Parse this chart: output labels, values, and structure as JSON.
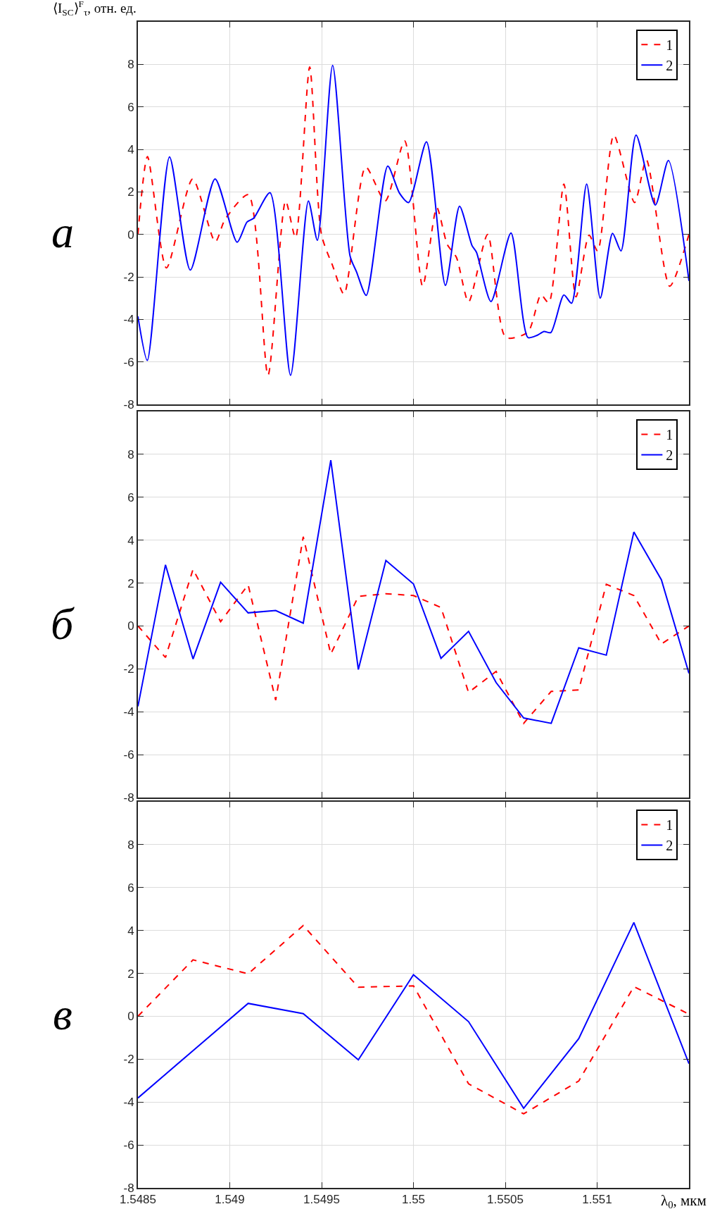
{
  "chart_data": [
    {
      "type": "line",
      "ylabel": "⟨I$_{SC}$⟩$^{F}$$_{τ}$, отн. ед.",
      "annotations": [
        "а"
      ],
      "xlim": [
        1.5485,
        1.5515
      ],
      "xticks": [
        1.5485,
        1.549,
        1.5495,
        1.55,
        1.5505,
        1.551
      ],
      "ylim": [
        -8,
        10
      ],
      "yticks": [
        -8,
        -6,
        -4,
        -2,
        0,
        2,
        4,
        6,
        8
      ],
      "grid": true,
      "legend": "top right",
      "tick_labels": "y",
      "series": [
        {
          "name": "1",
          "color": "#ff0000",
          "line_style": "dashed",
          "x": [
            1.5485,
            1.548552,
            1.548655,
            1.548798,
            1.548921,
            1.548974,
            1.549101,
            1.549208,
            1.549304,
            1.549358,
            1.549435,
            1.549499,
            1.549562,
            1.549622,
            1.54974,
            1.549846,
            1.549952,
            1.55005,
            1.550127,
            1.550184,
            1.550234,
            1.5503,
            1.550404,
            1.550503,
            1.550623,
            1.550694,
            1.550737,
            1.550819,
            1.550885,
            1.550956,
            1.551003,
            1.551091,
            1.551204,
            1.551268,
            1.551395,
            1.5515
          ],
          "values": [
            0,
            3.66,
            -1.58,
            2.61,
            -0.35,
            0.7,
            1.87,
            -6.63,
            1.57,
            -0.16,
            7.88,
            0,
            -1.52,
            -2.81,
            3.17,
            1.57,
            4.4,
            -2.44,
            1.26,
            -0.47,
            -1.08,
            -3.18,
            0,
            -4.85,
            -4.6,
            -2.85,
            -3.22,
            2.37,
            -2.94,
            -0.04,
            -0.78,
            4.67,
            1.5,
            3.51,
            -2.44,
            0
          ]
        },
        {
          "name": "2",
          "color": "#0000ff",
          "line_style": "solid",
          "x": [
            1.5485,
            1.548551,
            1.548672,
            1.548785,
            1.54892,
            1.54904,
            1.549094,
            1.54913,
            1.549219,
            1.549331,
            1.549428,
            1.549477,
            1.54956,
            1.549655,
            1.54969,
            1.549743,
            1.54986,
            1.549924,
            1.549974,
            1.550071,
            1.550174,
            1.550251,
            1.550319,
            1.550343,
            1.550422,
            1.550531,
            1.550623,
            1.550673,
            1.550711,
            1.550748,
            1.550819,
            1.550861,
            1.550943,
            1.551017,
            1.551084,
            1.55113,
            1.551212,
            1.551317,
            1.551388,
            1.5515
          ],
          "values": [
            -3.86,
            -5.93,
            3.64,
            -1.68,
            2.61,
            -0.37,
            0.58,
            0.76,
            1.96,
            -6.63,
            1.57,
            -0.28,
            7.95,
            -1.02,
            -1.76,
            -2.87,
            3.21,
            1.94,
            1.5,
            4.36,
            -2.4,
            1.32,
            -0.53,
            -0.84,
            -3.16,
            0.06,
            -4.85,
            -4.75,
            -4.57,
            -4.62,
            -2.85,
            -3.24,
            2.37,
            -3.0,
            0.05,
            -0.78,
            4.67,
            1.38,
            3.48,
            -2.19
          ]
        }
      ]
    },
    {
      "type": "line",
      "annotations": [
        "б"
      ],
      "xlim": [
        1.5485,
        1.5515
      ],
      "xticks": [
        1.5485,
        1.549,
        1.5495,
        1.55,
        1.5505,
        1.551
      ],
      "ylim": [
        -8,
        10
      ],
      "yticks": [
        -8,
        -6,
        -4,
        -2,
        0,
        2,
        4,
        6,
        8
      ],
      "grid": true,
      "legend": "top right",
      "tick_labels": "y",
      "x": [
        1.5485,
        1.54865,
        1.5488,
        1.54895,
        1.5491,
        1.54925,
        1.5494,
        1.54955,
        1.5497,
        1.54985,
        1.55,
        1.55015,
        1.5503,
        1.55045,
        1.5506,
        1.55075,
        1.5509,
        1.55105,
        1.5512,
        1.55135,
        1.5515
      ],
      "series": [
        {
          "name": "1",
          "color": "#ff0000",
          "line_style": "dashed",
          "values": [
            0,
            -1.47,
            2.64,
            0.2,
            1.92,
            -3.46,
            4.16,
            -1.31,
            1.38,
            1.5,
            1.42,
            0.86,
            -3.1,
            -2.12,
            -4.54,
            -3.05,
            -2.98,
            1.94,
            1.42,
            -0.84,
            0
          ]
        },
        {
          "name": "2",
          "color": "#0000ff",
          "line_style": "solid",
          "values": [
            -3.75,
            2.85,
            -1.54,
            2.04,
            0.61,
            0.72,
            0.13,
            7.73,
            -2.03,
            3.05,
            1.96,
            -1.51,
            -0.25,
            -2.64,
            -4.29,
            -4.54,
            -1.02,
            -1.36,
            4.38,
            2.15,
            -2.21
          ]
        }
      ]
    },
    {
      "type": "line",
      "xlabel": "λ$_{0}$, мкм",
      "annotations": [
        "в"
      ],
      "xlim": [
        1.5485,
        1.5515
      ],
      "xticks": [
        1.5485,
        1.549,
        1.5495,
        1.55,
        1.5505,
        1.551
      ],
      "ylim": [
        -8,
        10
      ],
      "yticks": [
        -8,
        -6,
        -4,
        -2,
        0,
        2,
        4,
        6,
        8
      ],
      "grid": true,
      "legend": "top right",
      "x": [
        1.5485,
        1.5488,
        1.5491,
        1.5494,
        1.5497,
        1.55,
        1.5503,
        1.5506,
        1.5509,
        1.5512,
        1.5515
      ],
      "series": [
        {
          "name": "1",
          "color": "#ff0000",
          "line_style": "dashed",
          "values": [
            0,
            2.63,
            1.98,
            4.23,
            1.35,
            1.42,
            -3.15,
            -4.55,
            -3.02,
            1.38,
            0.1
          ]
        },
        {
          "name": "2",
          "color": "#0000ff",
          "line_style": "solid",
          "values": [
            -3.81,
            -1.6,
            0.6,
            0.12,
            -2.03,
            1.94,
            -0.25,
            -4.29,
            -1.04,
            4.37,
            -2.21
          ]
        }
      ]
    }
  ]
}
